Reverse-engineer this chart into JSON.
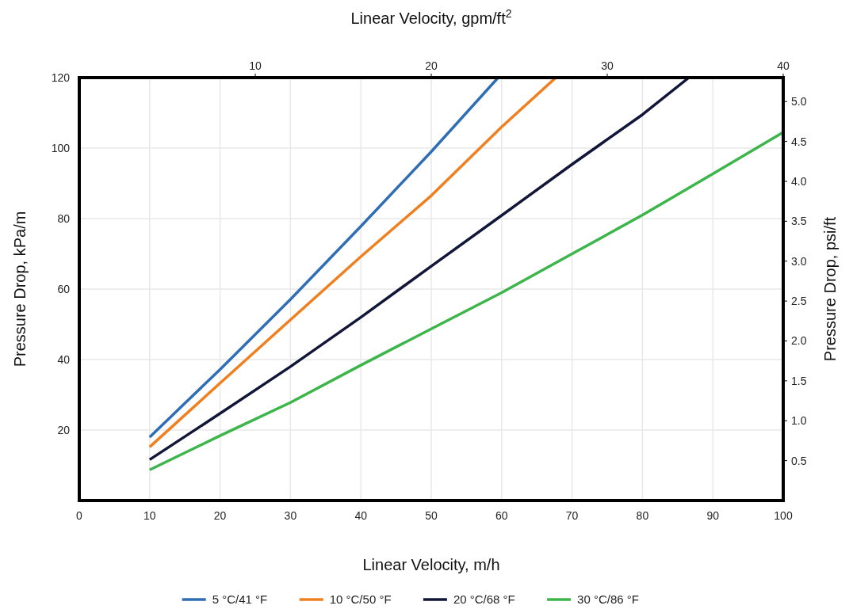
{
  "chart_data": {
    "type": "line",
    "xlabel": "Linear Velocity, m/h",
    "x2label": "Linear Velocity, gpm/ft$^{2}$",
    "ylabel": "Pressure Drop, kPa/m",
    "y2label": "Pressure Drop, psi/ft",
    "xlim": [
      0,
      100
    ],
    "xticks": [
      0,
      10,
      20,
      30,
      40,
      50,
      60,
      70,
      80,
      90,
      100
    ],
    "x2lim": [
      0,
      40
    ],
    "x2ticks": [
      10,
      20,
      30,
      40
    ],
    "ylim": [
      0,
      120
    ],
    "yticks": [
      20,
      40,
      60,
      80,
      100,
      120
    ],
    "y2lim": [
      0,
      5.3
    ],
    "y2ticks": [
      0.5,
      {
        "value": 1,
        "label": "1.0"
      },
      1.5,
      {
        "value": 2,
        "label": "2.0"
      },
      2.5,
      {
        "value": 3,
        "label": "3.0"
      },
      3.5,
      {
        "value": 4,
        "label": "4.0"
      },
      4.5,
      {
        "value": 5,
        "label": "5.0"
      }
    ],
    "grid": true,
    "legend": "bottom",
    "marker": "none",
    "line_style": "solid",
    "series": [
      {
        "name": "5 °C/41 °F",
        "color": "#2f6db5",
        "x": [
          10,
          20,
          30,
          40,
          50,
          59.5
        ],
        "values": [
          18,
          37.2,
          57.1,
          77.8,
          99,
          120
        ]
      },
      {
        "name": "10 °C/50 °F",
        "color": "#f07f1f",
        "x": [
          10,
          20,
          30,
          40,
          50,
          60,
          67.7
        ],
        "values": [
          15.2,
          33.3,
          51.3,
          69.2,
          86.5,
          106,
          120
        ]
      },
      {
        "name": "20 °C/68 °F",
        "color": "#121739",
        "x": [
          10,
          20,
          30,
          40,
          50,
          60,
          70,
          80,
          86.6
        ],
        "values": [
          11.6,
          24.7,
          38,
          52,
          66.5,
          80.9,
          95.4,
          109.5,
          120
        ]
      },
      {
        "name": "30 °C/86 °F",
        "color": "#3cb54a",
        "x": [
          10,
          20,
          30,
          40,
          50,
          60,
          70,
          80,
          90,
          100
        ],
        "values": [
          8.7,
          18.4,
          27.8,
          38.4,
          48.7,
          59,
          70,
          81,
          92.7,
          104.5
        ]
      }
    ]
  }
}
